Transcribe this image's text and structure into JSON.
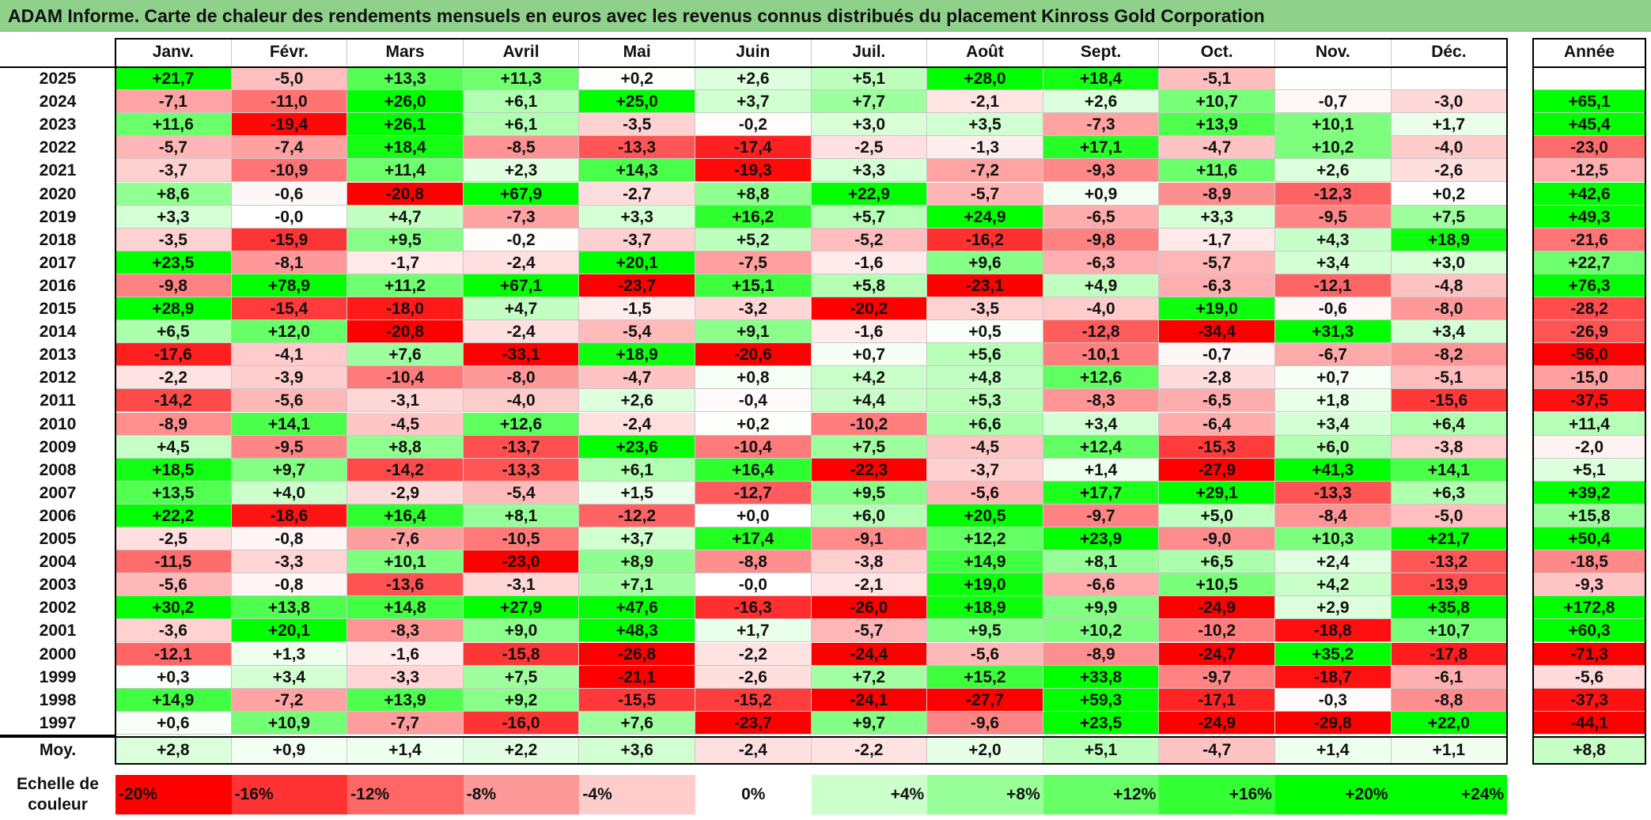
{
  "title": "ADAM Informe. Carte de chaleur des rendements mensuels en euros avec les revenus connus distribués du placement Kinross Gold Corporation",
  "chart_data": {
    "type": "heatmap",
    "columns": [
      "Janv.",
      "Févr.",
      "Mars",
      "Avril",
      "Mai",
      "Juin",
      "Juil.",
      "Août",
      "Sept.",
      "Oct.",
      "Nov.",
      "Déc."
    ],
    "year_header": "Année",
    "rows": [
      {
        "year": "2025",
        "values": [
          "+21,7",
          "-5,0",
          "+13,3",
          "+11,3",
          "+0,2",
          "+2,6",
          "+5,1",
          "+28,0",
          "+18,4",
          "-5,1",
          "",
          ""
        ],
        "annual": ""
      },
      {
        "year": "2024",
        "values": [
          "-7,1",
          "-11,0",
          "+26,0",
          "+6,1",
          "+25,0",
          "+3,7",
          "+7,7",
          "-2,1",
          "+2,6",
          "+10,7",
          "-0,7",
          "-3,0"
        ],
        "annual": "+65,1"
      },
      {
        "year": "2023",
        "values": [
          "+11,6",
          "-19,4",
          "+26,1",
          "+6,1",
          "-3,5",
          "-0,2",
          "+3,0",
          "+3,5",
          "-7,3",
          "+13,9",
          "+10,1",
          "+1,7"
        ],
        "annual": "+45,4"
      },
      {
        "year": "2022",
        "values": [
          "-5,7",
          "-7,4",
          "+18,4",
          "-8,5",
          "-13,3",
          "-17,4",
          "-2,5",
          "-1,3",
          "+17,1",
          "-4,7",
          "+10,2",
          "-4,0"
        ],
        "annual": "-23,0"
      },
      {
        "year": "2021",
        "values": [
          "-3,7",
          "-10,9",
          "+11,4",
          "+2,3",
          "+14,3",
          "-19,3",
          "+3,3",
          "-7,2",
          "-9,3",
          "+11,6",
          "+2,6",
          "-2,6"
        ],
        "annual": "-12,5"
      },
      {
        "year": "2020",
        "values": [
          "+8,6",
          "-0,6",
          "-20,8",
          "+67,9",
          "-2,7",
          "+8,8",
          "+22,9",
          "-5,7",
          "+0,9",
          "-8,9",
          "-12,3",
          "+0,2"
        ],
        "annual": "+42,6"
      },
      {
        "year": "2019",
        "values": [
          "+3,3",
          "-0,0",
          "+4,7",
          "-7,3",
          "+3,3",
          "+16,2",
          "+5,7",
          "+24,9",
          "-6,5",
          "+3,3",
          "-9,5",
          "+7,5"
        ],
        "annual": "+49,3"
      },
      {
        "year": "2018",
        "values": [
          "-3,5",
          "-15,9",
          "+9,5",
          "-0,2",
          "-3,7",
          "+5,2",
          "-5,2",
          "-16,2",
          "-9,8",
          "-1,7",
          "+4,3",
          "+18,9"
        ],
        "annual": "-21,6"
      },
      {
        "year": "2017",
        "values": [
          "+23,5",
          "-8,1",
          "-1,7",
          "-2,4",
          "+20,1",
          "-7,5",
          "-1,6",
          "+9,6",
          "-6,3",
          "-5,7",
          "+3,4",
          "+3,0"
        ],
        "annual": "+22,7"
      },
      {
        "year": "2016",
        "values": [
          "-9,8",
          "+78,9",
          "+11,2",
          "+67,1",
          "-23,7",
          "+15,1",
          "+5,8",
          "-23,1",
          "+4,9",
          "-6,3",
          "-12,1",
          "-4,8"
        ],
        "annual": "+76,3"
      },
      {
        "year": "2015",
        "values": [
          "+28,9",
          "-15,4",
          "-18,0",
          "+4,7",
          "-1,5",
          "-3,2",
          "-20,2",
          "-3,5",
          "-4,0",
          "+19,0",
          "-0,6",
          "-8,0"
        ],
        "annual": "-28,2"
      },
      {
        "year": "2014",
        "values": [
          "+6,5",
          "+12,0",
          "-20,8",
          "-2,4",
          "-5,4",
          "+9,1",
          "-1,6",
          "+0,5",
          "-12,8",
          "-34,4",
          "+31,3",
          "+3,4"
        ],
        "annual": "-26,9"
      },
      {
        "year": "2013",
        "values": [
          "-17,6",
          "-4,1",
          "+7,6",
          "-33,1",
          "+18,9",
          "-20,6",
          "+0,7",
          "+5,6",
          "-10,1",
          "-0,7",
          "-6,7",
          "-8,2"
        ],
        "annual": "-56,0"
      },
      {
        "year": "2012",
        "values": [
          "-2,2",
          "-3,9",
          "-10,4",
          "-8,0",
          "-4,7",
          "+0,8",
          "+4,2",
          "+4,8",
          "+12,6",
          "-2,8",
          "+0,7",
          "-5,1"
        ],
        "annual": "-15,0"
      },
      {
        "year": "2011",
        "values": [
          "-14,2",
          "-5,6",
          "-3,1",
          "-4,0",
          "+2,6",
          "-0,4",
          "+4,4",
          "+5,3",
          "-8,3",
          "-6,5",
          "+1,8",
          "-15,6"
        ],
        "annual": "-37,5"
      },
      {
        "year": "2010",
        "values": [
          "-8,9",
          "+14,1",
          "-4,5",
          "+12,6",
          "-2,4",
          "+0,2",
          "-10,2",
          "+6,6",
          "+3,4",
          "-6,4",
          "+3,4",
          "+6,4"
        ],
        "annual": "+11,4"
      },
      {
        "year": "2009",
        "values": [
          "+4,5",
          "-9,5",
          "+8,8",
          "-13,7",
          "+23,6",
          "-10,4",
          "+7,5",
          "-4,5",
          "+12,4",
          "-15,3",
          "+6,0",
          "-3,8"
        ],
        "annual": "-2,0"
      },
      {
        "year": "2008",
        "values": [
          "+18,5",
          "+9,7",
          "-14,2",
          "-13,3",
          "+6,1",
          "+16,4",
          "-22,3",
          "-3,7",
          "+1,4",
          "-27,9",
          "+41,3",
          "+14,1"
        ],
        "annual": "+5,1"
      },
      {
        "year": "2007",
        "values": [
          "+13,5",
          "+4,0",
          "-2,9",
          "-5,4",
          "+1,5",
          "-12,7",
          "+9,5",
          "-5,6",
          "+17,7",
          "+29,1",
          "-13,3",
          "+6,3"
        ],
        "annual": "+39,2"
      },
      {
        "year": "2006",
        "values": [
          "+22,2",
          "-18,6",
          "+16,4",
          "+8,1",
          "-12,2",
          "+0,0",
          "+6,0",
          "+20,5",
          "-9,7",
          "+5,0",
          "-8,4",
          "-5,0"
        ],
        "annual": "+15,8"
      },
      {
        "year": "2005",
        "values": [
          "-2,5",
          "-0,8",
          "-7,6",
          "-10,5",
          "+3,7",
          "+17,4",
          "-9,1",
          "+12,2",
          "+23,9",
          "-9,0",
          "+10,3",
          "+21,7"
        ],
        "annual": "+50,4"
      },
      {
        "year": "2004",
        "values": [
          "-11,5",
          "-3,3",
          "+10,1",
          "-23,0",
          "+8,9",
          "-8,8",
          "-3,8",
          "+14,9",
          "+8,1",
          "+6,5",
          "+2,4",
          "-13,2"
        ],
        "annual": "-18,5"
      },
      {
        "year": "2003",
        "values": [
          "-5,6",
          "-0,8",
          "-13,6",
          "-3,1",
          "+7,1",
          "-0,0",
          "-2,1",
          "+19,0",
          "-6,6",
          "+10,5",
          "+4,2",
          "-13,9"
        ],
        "annual": "-9,3"
      },
      {
        "year": "2002",
        "values": [
          "+30,2",
          "+13,8",
          "+14,8",
          "+27,9",
          "+47,6",
          "-16,3",
          "-26,0",
          "+18,9",
          "+9,9",
          "-24,9",
          "+2,9",
          "+35,8"
        ],
        "annual": "+172,8"
      },
      {
        "year": "2001",
        "values": [
          "-3,6",
          "+20,1",
          "-8,3",
          "+9,0",
          "+48,3",
          "+1,7",
          "-5,7",
          "+9,5",
          "+10,2",
          "-10,2",
          "-18,8",
          "+10,7"
        ],
        "annual": "+60,3"
      },
      {
        "year": "2000",
        "values": [
          "-12,1",
          "+1,3",
          "-1,6",
          "-15,8",
          "-26,8",
          "-2,2",
          "-24,4",
          "-5,6",
          "-8,9",
          "-24,7",
          "+35,2",
          "-17,8"
        ],
        "annual": "-71,3"
      },
      {
        "year": "1999",
        "values": [
          "+0,3",
          "+3,4",
          "-3,3",
          "+7,5",
          "-21,1",
          "-2,6",
          "+7,2",
          "+15,2",
          "+33,8",
          "-9,7",
          "-18,7",
          "-6,1"
        ],
        "annual": "-5,6"
      },
      {
        "year": "1998",
        "values": [
          "+14,9",
          "-7,2",
          "+13,9",
          "+9,2",
          "-15,5",
          "-15,2",
          "-24,1",
          "-27,7",
          "+59,3",
          "-17,1",
          "-0,3",
          "-8,8"
        ],
        "annual": "-37,3"
      },
      {
        "year": "1997",
        "values": [
          "+0,6",
          "+10,9",
          "-7,7",
          "-16,0",
          "+7,6",
          "-23,7",
          "+9,7",
          "-9,6",
          "+23,5",
          "-24,9",
          "-29,8",
          "+22,0"
        ],
        "annual": "-44,1"
      }
    ],
    "average": {
      "label": "Moy.",
      "values": [
        "+2,8",
        "+0,9",
        "+1,4",
        "+2,2",
        "+3,6",
        "-2,4",
        "-2,2",
        "+2,0",
        "+5,1",
        "-4,7",
        "+1,4",
        "+1,1"
      ],
      "annual": "+8,8"
    },
    "scale": {
      "label_line1": "Echelle de",
      "label_line2": "couleur",
      "steps": [
        "-20%",
        "-16%",
        "-12%",
        "-8%",
        "-4%",
        "0%",
        "+4%",
        "+8%",
        "+12%",
        "+16%",
        "+20%",
        "+24%"
      ]
    },
    "colors": {
      "negative_max": "#ff0000",
      "neutral": "#ffffff",
      "positive_max": "#00ff00"
    }
  }
}
